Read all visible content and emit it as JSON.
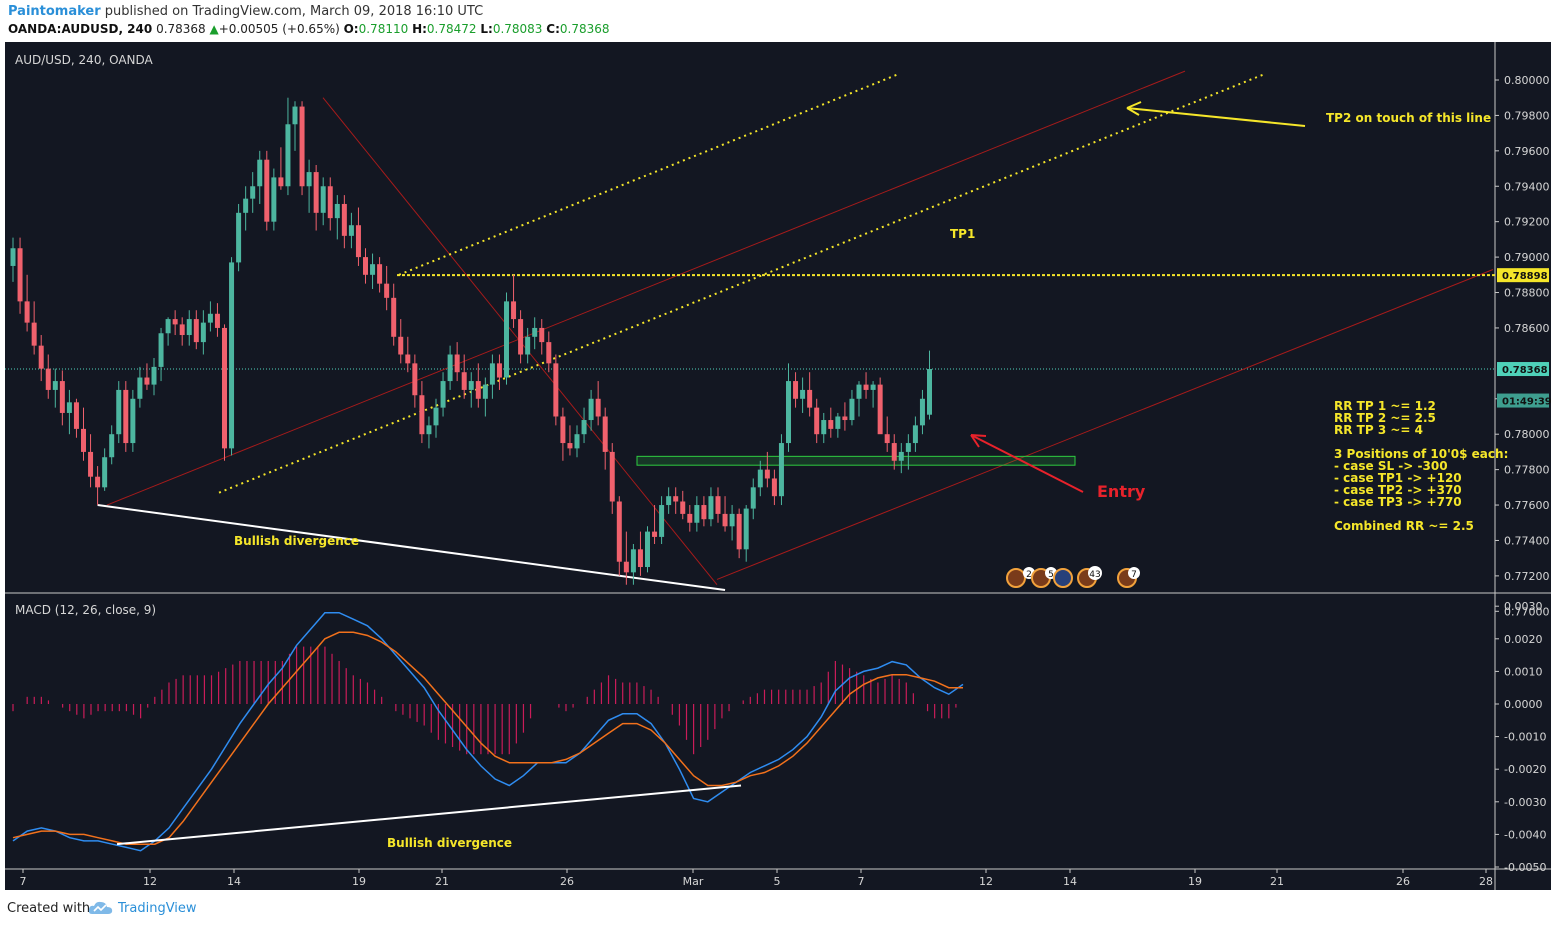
{
  "header": {
    "author": "Paintomaker",
    "published_text": "published on TradingView.com, March 09, 2018 16:10 UTC",
    "symbol": "OANDA:AUDUSD, 240",
    "last": "0.78368",
    "change": "+0.00505 (+0.65%)",
    "o_label": "O:",
    "o": "0.78110",
    "h_label": "H:",
    "h": "0.78472",
    "l_label": "L:",
    "l": "0.78083",
    "c_label": "C:",
    "c": "0.78368"
  },
  "footer": {
    "created": "Created with",
    "brand": "TradingView"
  },
  "chart_data": [
    {
      "type": "candlestick",
      "title": "AUD/USD, 240, OANDA",
      "ylim": [
        0.77,
        0.8005
      ],
      "y_ticks": [
        "0.80000",
        "0.79800",
        "0.79600",
        "0.79400",
        "0.79200",
        "0.79000",
        "0.78800",
        "0.78600",
        "0.78200",
        "0.78000",
        "0.77800",
        "0.77600",
        "0.77400",
        "0.77200",
        "0.77000"
      ],
      "price_labels": [
        {
          "value": 0.78898,
          "text": "0.78898",
          "color": "#f5e62a"
        },
        {
          "value": 0.78368,
          "text": "0.78368",
          "color": "#4fd1b9"
        },
        {
          "value": 0.7819,
          "text": "01:49:39",
          "color": "#3e9e8f"
        }
      ],
      "x_ticks": [
        "7",
        "12",
        "14",
        "19",
        "21",
        "26",
        "Mar",
        "5",
        "7",
        "12",
        "14",
        "19",
        "21",
        "26",
        "28"
      ],
      "candles_ohlc": [
        [
          0.7895,
          0.7911,
          0.7886,
          0.7905
        ],
        [
          0.7905,
          0.7911,
          0.7868,
          0.7875
        ],
        [
          0.7875,
          0.789,
          0.7858,
          0.7863
        ],
        [
          0.7863,
          0.7875,
          0.7845,
          0.785
        ],
        [
          0.785,
          0.7856,
          0.783,
          0.7837
        ],
        [
          0.7837,
          0.7845,
          0.782,
          0.7825
        ],
        [
          0.7825,
          0.7837,
          0.7815,
          0.783
        ],
        [
          0.783,
          0.7836,
          0.7805,
          0.7812
        ],
        [
          0.7812,
          0.7825,
          0.78,
          0.7818
        ],
        [
          0.7818,
          0.782,
          0.7798,
          0.7803
        ],
        [
          0.7803,
          0.7815,
          0.7785,
          0.779
        ],
        [
          0.779,
          0.78,
          0.777,
          0.7776
        ],
        [
          0.7776,
          0.7782,
          0.776,
          0.777
        ],
        [
          0.777,
          0.7792,
          0.7768,
          0.7787
        ],
        [
          0.7787,
          0.7805,
          0.7783,
          0.78
        ],
        [
          0.78,
          0.783,
          0.7795,
          0.7825
        ],
        [
          0.7825,
          0.783,
          0.779,
          0.7795
        ],
        [
          0.7795,
          0.7825,
          0.779,
          0.782
        ],
        [
          0.782,
          0.7838,
          0.7815,
          0.7832
        ],
        [
          0.7832,
          0.784,
          0.7825,
          0.7828
        ],
        [
          0.7828,
          0.7843,
          0.7822,
          0.7838
        ],
        [
          0.7838,
          0.786,
          0.783,
          0.7857
        ],
        [
          0.7857,
          0.7866,
          0.785,
          0.7865
        ],
        [
          0.7865,
          0.787,
          0.7856,
          0.7862
        ],
        [
          0.7862,
          0.7866,
          0.785,
          0.7856
        ],
        [
          0.7856,
          0.787,
          0.785,
          0.7865
        ],
        [
          0.7865,
          0.787,
          0.7848,
          0.7852
        ],
        [
          0.7852,
          0.787,
          0.7845,
          0.7863
        ],
        [
          0.7863,
          0.7875,
          0.7858,
          0.7868
        ],
        [
          0.7868,
          0.7874,
          0.7855,
          0.786
        ],
        [
          0.786,
          0.7862,
          0.7785,
          0.7792
        ],
        [
          0.7792,
          0.79,
          0.7788,
          0.7897
        ],
        [
          0.7897,
          0.793,
          0.7892,
          0.7925
        ],
        [
          0.7925,
          0.794,
          0.7915,
          0.7933
        ],
        [
          0.7933,
          0.7948,
          0.7925,
          0.794
        ],
        [
          0.794,
          0.796,
          0.793,
          0.7955
        ],
        [
          0.7955,
          0.796,
          0.7915,
          0.792
        ],
        [
          0.792,
          0.795,
          0.7915,
          0.7945
        ],
        [
          0.7945,
          0.7962,
          0.7938,
          0.794
        ],
        [
          0.794,
          0.799,
          0.7935,
          0.7975
        ],
        [
          0.7975,
          0.7988,
          0.796,
          0.7985
        ],
        [
          0.7985,
          0.7988,
          0.7935,
          0.794
        ],
        [
          0.794,
          0.7955,
          0.7925,
          0.7948
        ],
        [
          0.7948,
          0.7952,
          0.7915,
          0.7925
        ],
        [
          0.7925,
          0.7945,
          0.7918,
          0.794
        ],
        [
          0.794,
          0.7945,
          0.7915,
          0.7922
        ],
        [
          0.7922,
          0.7935,
          0.791,
          0.793
        ],
        [
          0.793,
          0.7935,
          0.7905,
          0.7912
        ],
        [
          0.7912,
          0.7925,
          0.7905,
          0.7918
        ],
        [
          0.7918,
          0.7928,
          0.7895,
          0.79
        ],
        [
          0.79,
          0.7905,
          0.7885,
          0.789
        ],
        [
          0.789,
          0.7902,
          0.7882,
          0.7896
        ],
        [
          0.7896,
          0.79,
          0.788,
          0.7885
        ],
        [
          0.7885,
          0.7895,
          0.787,
          0.7877
        ],
        [
          0.7877,
          0.7885,
          0.785,
          0.7855
        ],
        [
          0.7855,
          0.7865,
          0.784,
          0.7845
        ],
        [
          0.7845,
          0.7855,
          0.7835,
          0.784
        ],
        [
          0.784,
          0.7845,
          0.7815,
          0.7822
        ],
        [
          0.7822,
          0.783,
          0.7795,
          0.78
        ],
        [
          0.78,
          0.781,
          0.7792,
          0.7805
        ],
        [
          0.7805,
          0.782,
          0.7798,
          0.7815
        ],
        [
          0.7815,
          0.7835,
          0.781,
          0.783
        ],
        [
          0.783,
          0.785,
          0.7825,
          0.7845
        ],
        [
          0.7845,
          0.7852,
          0.783,
          0.7835
        ],
        [
          0.7835,
          0.7845,
          0.782,
          0.7825
        ],
        [
          0.7825,
          0.7835,
          0.7815,
          0.783
        ],
        [
          0.783,
          0.784,
          0.7815,
          0.782
        ],
        [
          0.782,
          0.7832,
          0.781,
          0.7828
        ],
        [
          0.7828,
          0.7845,
          0.782,
          0.784
        ],
        [
          0.784,
          0.7845,
          0.7825,
          0.7832
        ],
        [
          0.7832,
          0.788,
          0.7828,
          0.7875
        ],
        [
          0.7875,
          0.789,
          0.786,
          0.7865
        ],
        [
          0.7865,
          0.787,
          0.784,
          0.7845
        ],
        [
          0.7845,
          0.786,
          0.784,
          0.7855
        ],
        [
          0.7855,
          0.7866,
          0.7848,
          0.786
        ],
        [
          0.786,
          0.7865,
          0.7845,
          0.7852
        ],
        [
          0.7852,
          0.7858,
          0.7835,
          0.784
        ],
        [
          0.784,
          0.7845,
          0.7805,
          0.781
        ],
        [
          0.781,
          0.7815,
          0.7785,
          0.7795
        ],
        [
          0.7795,
          0.7805,
          0.7788,
          0.7792
        ],
        [
          0.7792,
          0.7805,
          0.7787,
          0.78
        ],
        [
          0.78,
          0.7815,
          0.7795,
          0.7808
        ],
        [
          0.7808,
          0.7825,
          0.7802,
          0.782
        ],
        [
          0.782,
          0.783,
          0.7805,
          0.781
        ],
        [
          0.781,
          0.7815,
          0.778,
          0.779
        ],
        [
          0.779,
          0.7795,
          0.7755,
          0.7762
        ],
        [
          0.7762,
          0.7765,
          0.772,
          0.7728
        ],
        [
          0.7728,
          0.7745,
          0.7715,
          0.7722
        ],
        [
          0.7722,
          0.7738,
          0.7715,
          0.7735
        ],
        [
          0.7735,
          0.7745,
          0.772,
          0.7725
        ],
        [
          0.7725,
          0.7748,
          0.7722,
          0.7745
        ],
        [
          0.7745,
          0.776,
          0.7738,
          0.7742
        ],
        [
          0.7742,
          0.7765,
          0.7738,
          0.776
        ],
        [
          0.776,
          0.777,
          0.7755,
          0.7765
        ],
        [
          0.7765,
          0.777,
          0.7755,
          0.7762
        ],
        [
          0.7762,
          0.7768,
          0.7752,
          0.7755
        ],
        [
          0.7755,
          0.776,
          0.7745,
          0.775
        ],
        [
          0.775,
          0.7765,
          0.7745,
          0.776
        ],
        [
          0.776,
          0.7765,
          0.7748,
          0.7752
        ],
        [
          0.7752,
          0.777,
          0.7748,
          0.7765
        ],
        [
          0.7765,
          0.777,
          0.775,
          0.7755
        ],
        [
          0.7755,
          0.7765,
          0.7745,
          0.7748
        ],
        [
          0.7748,
          0.776,
          0.774,
          0.7755
        ],
        [
          0.7755,
          0.7758,
          0.773,
          0.7735
        ],
        [
          0.7735,
          0.776,
          0.7728,
          0.7758
        ],
        [
          0.7758,
          0.7775,
          0.7752,
          0.777
        ],
        [
          0.777,
          0.7785,
          0.7765,
          0.778
        ],
        [
          0.778,
          0.779,
          0.777,
          0.7775
        ],
        [
          0.7775,
          0.778,
          0.776,
          0.7765
        ],
        [
          0.7765,
          0.78,
          0.776,
          0.7795
        ],
        [
          0.7795,
          0.784,
          0.779,
          0.783
        ],
        [
          0.783,
          0.7835,
          0.7815,
          0.782
        ],
        [
          0.782,
          0.7832,
          0.7812,
          0.7825
        ],
        [
          0.7825,
          0.7835,
          0.781,
          0.7815
        ],
        [
          0.7815,
          0.782,
          0.7795,
          0.78
        ],
        [
          0.78,
          0.7812,
          0.7795,
          0.7808
        ],
        [
          0.7808,
          0.7815,
          0.7798,
          0.7803
        ],
        [
          0.7803,
          0.7812,
          0.7798,
          0.781
        ],
        [
          0.781,
          0.7818,
          0.7802,
          0.7808
        ],
        [
          0.7808,
          0.7825,
          0.7805,
          0.782
        ],
        [
          0.782,
          0.783,
          0.781,
          0.7828
        ],
        [
          0.7828,
          0.7835,
          0.782,
          0.7825
        ],
        [
          0.7825,
          0.783,
          0.7815,
          0.7828
        ],
        [
          0.7828,
          0.7832,
          0.7812,
          0.78
        ],
        [
          0.78,
          0.781,
          0.779,
          0.7795
        ],
        [
          0.7795,
          0.78,
          0.778,
          0.7785
        ],
        [
          0.7785,
          0.7795,
          0.7778,
          0.779
        ],
        [
          0.779,
          0.78,
          0.778,
          0.7795
        ],
        [
          0.7795,
          0.781,
          0.779,
          0.7805
        ],
        [
          0.7805,
          0.7825,
          0.78,
          0.782
        ],
        [
          0.7811,
          0.78472,
          0.78083,
          0.78368
        ]
      ],
      "lines": [
        {
          "kind": "divergence",
          "color": "#ffffff",
          "points": [
            [
              12,
              0.776
            ],
            [
              101,
              0.7712
            ]
          ]
        },
        {
          "kind": "resistance",
          "color": "#f5e62a",
          "value": 0.78898
        }
      ],
      "zone": {
        "color": "#2ecc40",
        "from": 0.77825,
        "to": 0.77875
      },
      "annotations": [
        {
          "text": "Bullish divergence",
          "color": "#f5e62a"
        },
        {
          "text": "TP1",
          "color": "#f5e62a"
        },
        {
          "text": "TP2 on touch of this line",
          "color": "#f5e62a"
        },
        {
          "text": "Entry",
          "color": "#e8222b"
        }
      ],
      "stats": [
        "RR TP 1 ~= 1.2",
        "RR TP 2 ~= 2.5",
        "RR TP 3 ~= 4",
        "",
        "3 Positions of 10'0$ each:",
        "- case SL -> -300",
        "- case TP1 -> +120",
        "- case TP2 -> +370",
        "- case TP3 -> +770",
        "",
        "Combined RR ~= 2.5"
      ],
      "event_badges": [
        "2",
        "5",
        "43",
        "7"
      ]
    },
    {
      "type": "line",
      "title": "MACD (12, 26, close, 9)",
      "ylim": [
        -0.005,
        0.003
      ],
      "y_ticks": [
        "0.0030",
        "0.0020",
        "0.0010",
        "0.0000",
        "-0.0010",
        "-0.0020",
        "-0.0030",
        "-0.0040",
        "-0.0050"
      ],
      "annotation": {
        "text": "Bullish divergence",
        "color": "#f5e62a"
      },
      "series": [
        {
          "color": "#2f8cf0",
          "values": [
            -0.0042,
            -0.0039,
            -0.0038,
            -0.0039,
            -0.0041,
            -0.0042,
            -0.0042,
            -0.0043,
            -0.0044,
            -0.0045,
            -0.0042,
            -0.0038,
            -0.0032,
            -0.0026,
            -0.002,
            -0.0013,
            -0.0006,
            0.0,
            0.0006,
            0.0011,
            0.0018,
            0.0023,
            0.0028,
            0.0028,
            0.0026,
            0.0024,
            0.002,
            0.0015,
            0.001,
            0.0005,
            -0.0002,
            -0.0008,
            -0.0014,
            -0.0019,
            -0.0023,
            -0.0025,
            -0.0022,
            -0.0018,
            -0.0018,
            -0.0018,
            -0.0015,
            -0.001,
            -0.0005,
            -0.0003,
            -0.0003,
            -0.0006,
            -0.0012,
            -0.002,
            -0.0029,
            -0.003,
            -0.0027,
            -0.0024,
            -0.0021,
            -0.0019,
            -0.0017,
            -0.0014,
            -0.001,
            -0.0004,
            0.0004,
            0.0008,
            0.001,
            0.0011,
            0.0013,
            0.0012,
            0.0008,
            0.0005,
            0.0003,
            0.0006
          ]
        },
        {
          "color": "#f2711c",
          "values": [
            -0.0041,
            -0.004,
            -0.0039,
            -0.0039,
            -0.004,
            -0.004,
            -0.0041,
            -0.0042,
            -0.0043,
            -0.0043,
            -0.0043,
            -0.0041,
            -0.0036,
            -0.003,
            -0.0024,
            -0.0018,
            -0.0012,
            -0.0006,
            0.0,
            0.0005,
            0.001,
            0.0015,
            0.002,
            0.0022,
            0.0022,
            0.0021,
            0.0019,
            0.0016,
            0.0012,
            0.0008,
            0.0003,
            -0.0002,
            -0.0007,
            -0.0012,
            -0.0016,
            -0.0018,
            -0.0018,
            -0.0018,
            -0.0018,
            -0.0017,
            -0.0015,
            -0.0012,
            -0.0009,
            -0.0006,
            -0.0006,
            -0.0008,
            -0.0012,
            -0.0017,
            -0.0022,
            -0.0025,
            -0.0025,
            -0.0024,
            -0.0022,
            -0.0021,
            -0.0019,
            -0.0016,
            -0.0012,
            -0.0007,
            -0.0002,
            0.0003,
            0.0006,
            0.0008,
            0.0009,
            0.0009,
            0.0008,
            0.0007,
            0.0005,
            0.0005
          ]
        }
      ],
      "histogram_color": "#e91e63"
    }
  ]
}
